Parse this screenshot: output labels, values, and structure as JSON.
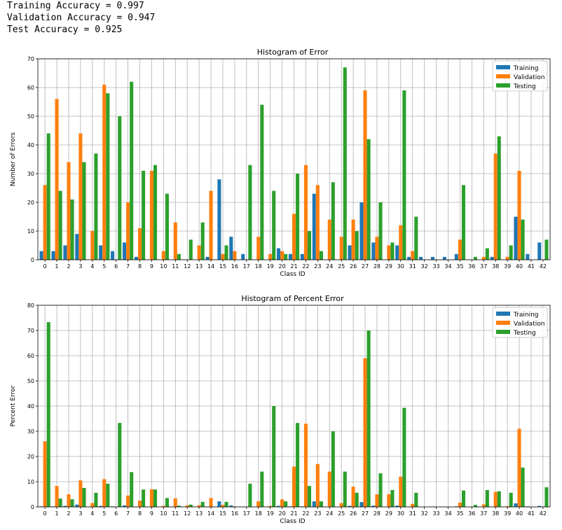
{
  "output_lines": [
    "Training Accuracy = 0.997",
    "Validation Accuracy = 0.947",
    "Test Accuracy = 0.925"
  ],
  "colors": {
    "training": "#1f77b4",
    "validation": "#ff7f0e",
    "testing": "#2ca02c"
  },
  "chart_data": [
    {
      "type": "bar",
      "title": "Histogram of Error",
      "xlabel": "Class ID",
      "ylabel": "Number of Errors",
      "ylim": [
        0,
        70
      ],
      "yticks": [
        0,
        10,
        20,
        30,
        40,
        50,
        60,
        70
      ],
      "grid": true,
      "legend_position": "top-right",
      "categories": [
        "0",
        "1",
        "2",
        "3",
        "4",
        "5",
        "6",
        "7",
        "8",
        "9",
        "10",
        "11",
        "12",
        "13",
        "14",
        "15",
        "16",
        "17",
        "18",
        "19",
        "20",
        "21",
        "22",
        "23",
        "24",
        "25",
        "26",
        "27",
        "28",
        "29",
        "30",
        "31",
        "32",
        "33",
        "34",
        "35",
        "36",
        "37",
        "38",
        "39",
        "40",
        "41",
        "42"
      ],
      "series": [
        {
          "name": "Training",
          "values": [
            3,
            3,
            5,
            9,
            0,
            5,
            3,
            6,
            1,
            0,
            0,
            0,
            0,
            0,
            1,
            28,
            8,
            2,
            0,
            0,
            4,
            2,
            2,
            23,
            0,
            0,
            5,
            20,
            6,
            0,
            5,
            1,
            1,
            1,
            1,
            2,
            0,
            0,
            1,
            0,
            15,
            2,
            6
          ]
        },
        {
          "name": "Validation",
          "values": [
            26,
            56,
            34,
            44,
            10,
            61,
            0,
            20,
            11,
            31,
            3,
            13,
            0,
            5,
            24,
            2,
            3,
            0,
            8,
            2,
            3,
            16,
            33,
            26,
            14,
            8,
            14,
            59,
            8,
            5,
            12,
            3,
            0,
            0,
            0,
            7,
            0,
            1,
            37,
            1,
            31,
            0,
            0
          ]
        },
        {
          "name": "Testing",
          "values": [
            44,
            24,
            21,
            34,
            37,
            58,
            50,
            62,
            31,
            33,
            23,
            2,
            7,
            13,
            0,
            5,
            0,
            33,
            54,
            24,
            2,
            30,
            10,
            3,
            27,
            67,
            10,
            42,
            20,
            6,
            59,
            15,
            0,
            0,
            0,
            26,
            1,
            4,
            43,
            5,
            14,
            0,
            7
          ]
        }
      ]
    },
    {
      "type": "bar",
      "title": "Histogram of Percent Error",
      "xlabel": "Class ID",
      "ylabel": "Percent Error",
      "ylim": [
        0,
        80
      ],
      "yticks": [
        0,
        10,
        20,
        30,
        40,
        50,
        60,
        70,
        80
      ],
      "grid": true,
      "legend_position": "top-right",
      "categories": [
        "0",
        "1",
        "2",
        "3",
        "4",
        "5",
        "6",
        "7",
        "8",
        "9",
        "10",
        "11",
        "12",
        "13",
        "14",
        "15",
        "16",
        "17",
        "18",
        "19",
        "20",
        "21",
        "22",
        "23",
        "24",
        "25",
        "26",
        "27",
        "28",
        "29",
        "30",
        "31",
        "32",
        "33",
        "34",
        "35",
        "36",
        "37",
        "38",
        "39",
        "40",
        "41",
        "42"
      ],
      "series": [
        {
          "name": "Training",
          "values": [
            0.2,
            0.2,
            0.4,
            0.9,
            0,
            0.4,
            0.2,
            0.6,
            0.1,
            0,
            0,
            0,
            0,
            0,
            0.1,
            2.2,
            0.6,
            0.1,
            0,
            0,
            0.4,
            0.2,
            0.2,
            2.2,
            0,
            0,
            0.4,
            1.9,
            0.5,
            0,
            0.5,
            0.1,
            0.1,
            0.1,
            0.1,
            0.2,
            0,
            0,
            0.1,
            0,
            1.4,
            0.2,
            0.4
          ]
        },
        {
          "name": "Validation",
          "values": [
            26,
            8.3,
            5,
            10.5,
            1.5,
            11,
            0,
            4.5,
            2.5,
            7,
            0.4,
            3.4,
            0.6,
            0.7,
            3.5,
            0.8,
            0.2,
            0.1,
            2.2,
            0.4,
            3,
            16,
            33,
            17,
            14,
            1.5,
            8,
            59,
            5,
            5,
            12,
            1.2,
            0,
            0,
            0,
            1.7,
            0,
            1,
            6,
            0.3,
            31,
            0,
            0
          ]
        },
        {
          "name": "Testing",
          "values": [
            73.3,
            3.3,
            3,
            7.5,
            5.6,
            9.2,
            33.3,
            13.8,
            6.9,
            6.9,
            3.5,
            0.5,
            0.9,
            2,
            0,
            2,
            0,
            9.2,
            14,
            40,
            2.2,
            33.3,
            8.3,
            2.2,
            30,
            14,
            5.6,
            70,
            13.3,
            6.7,
            39.3,
            5.6,
            0,
            0,
            0,
            6.5,
            0.8,
            6.7,
            6.2,
            5.6,
            15.6,
            0,
            7.8
          ]
        }
      ]
    }
  ]
}
